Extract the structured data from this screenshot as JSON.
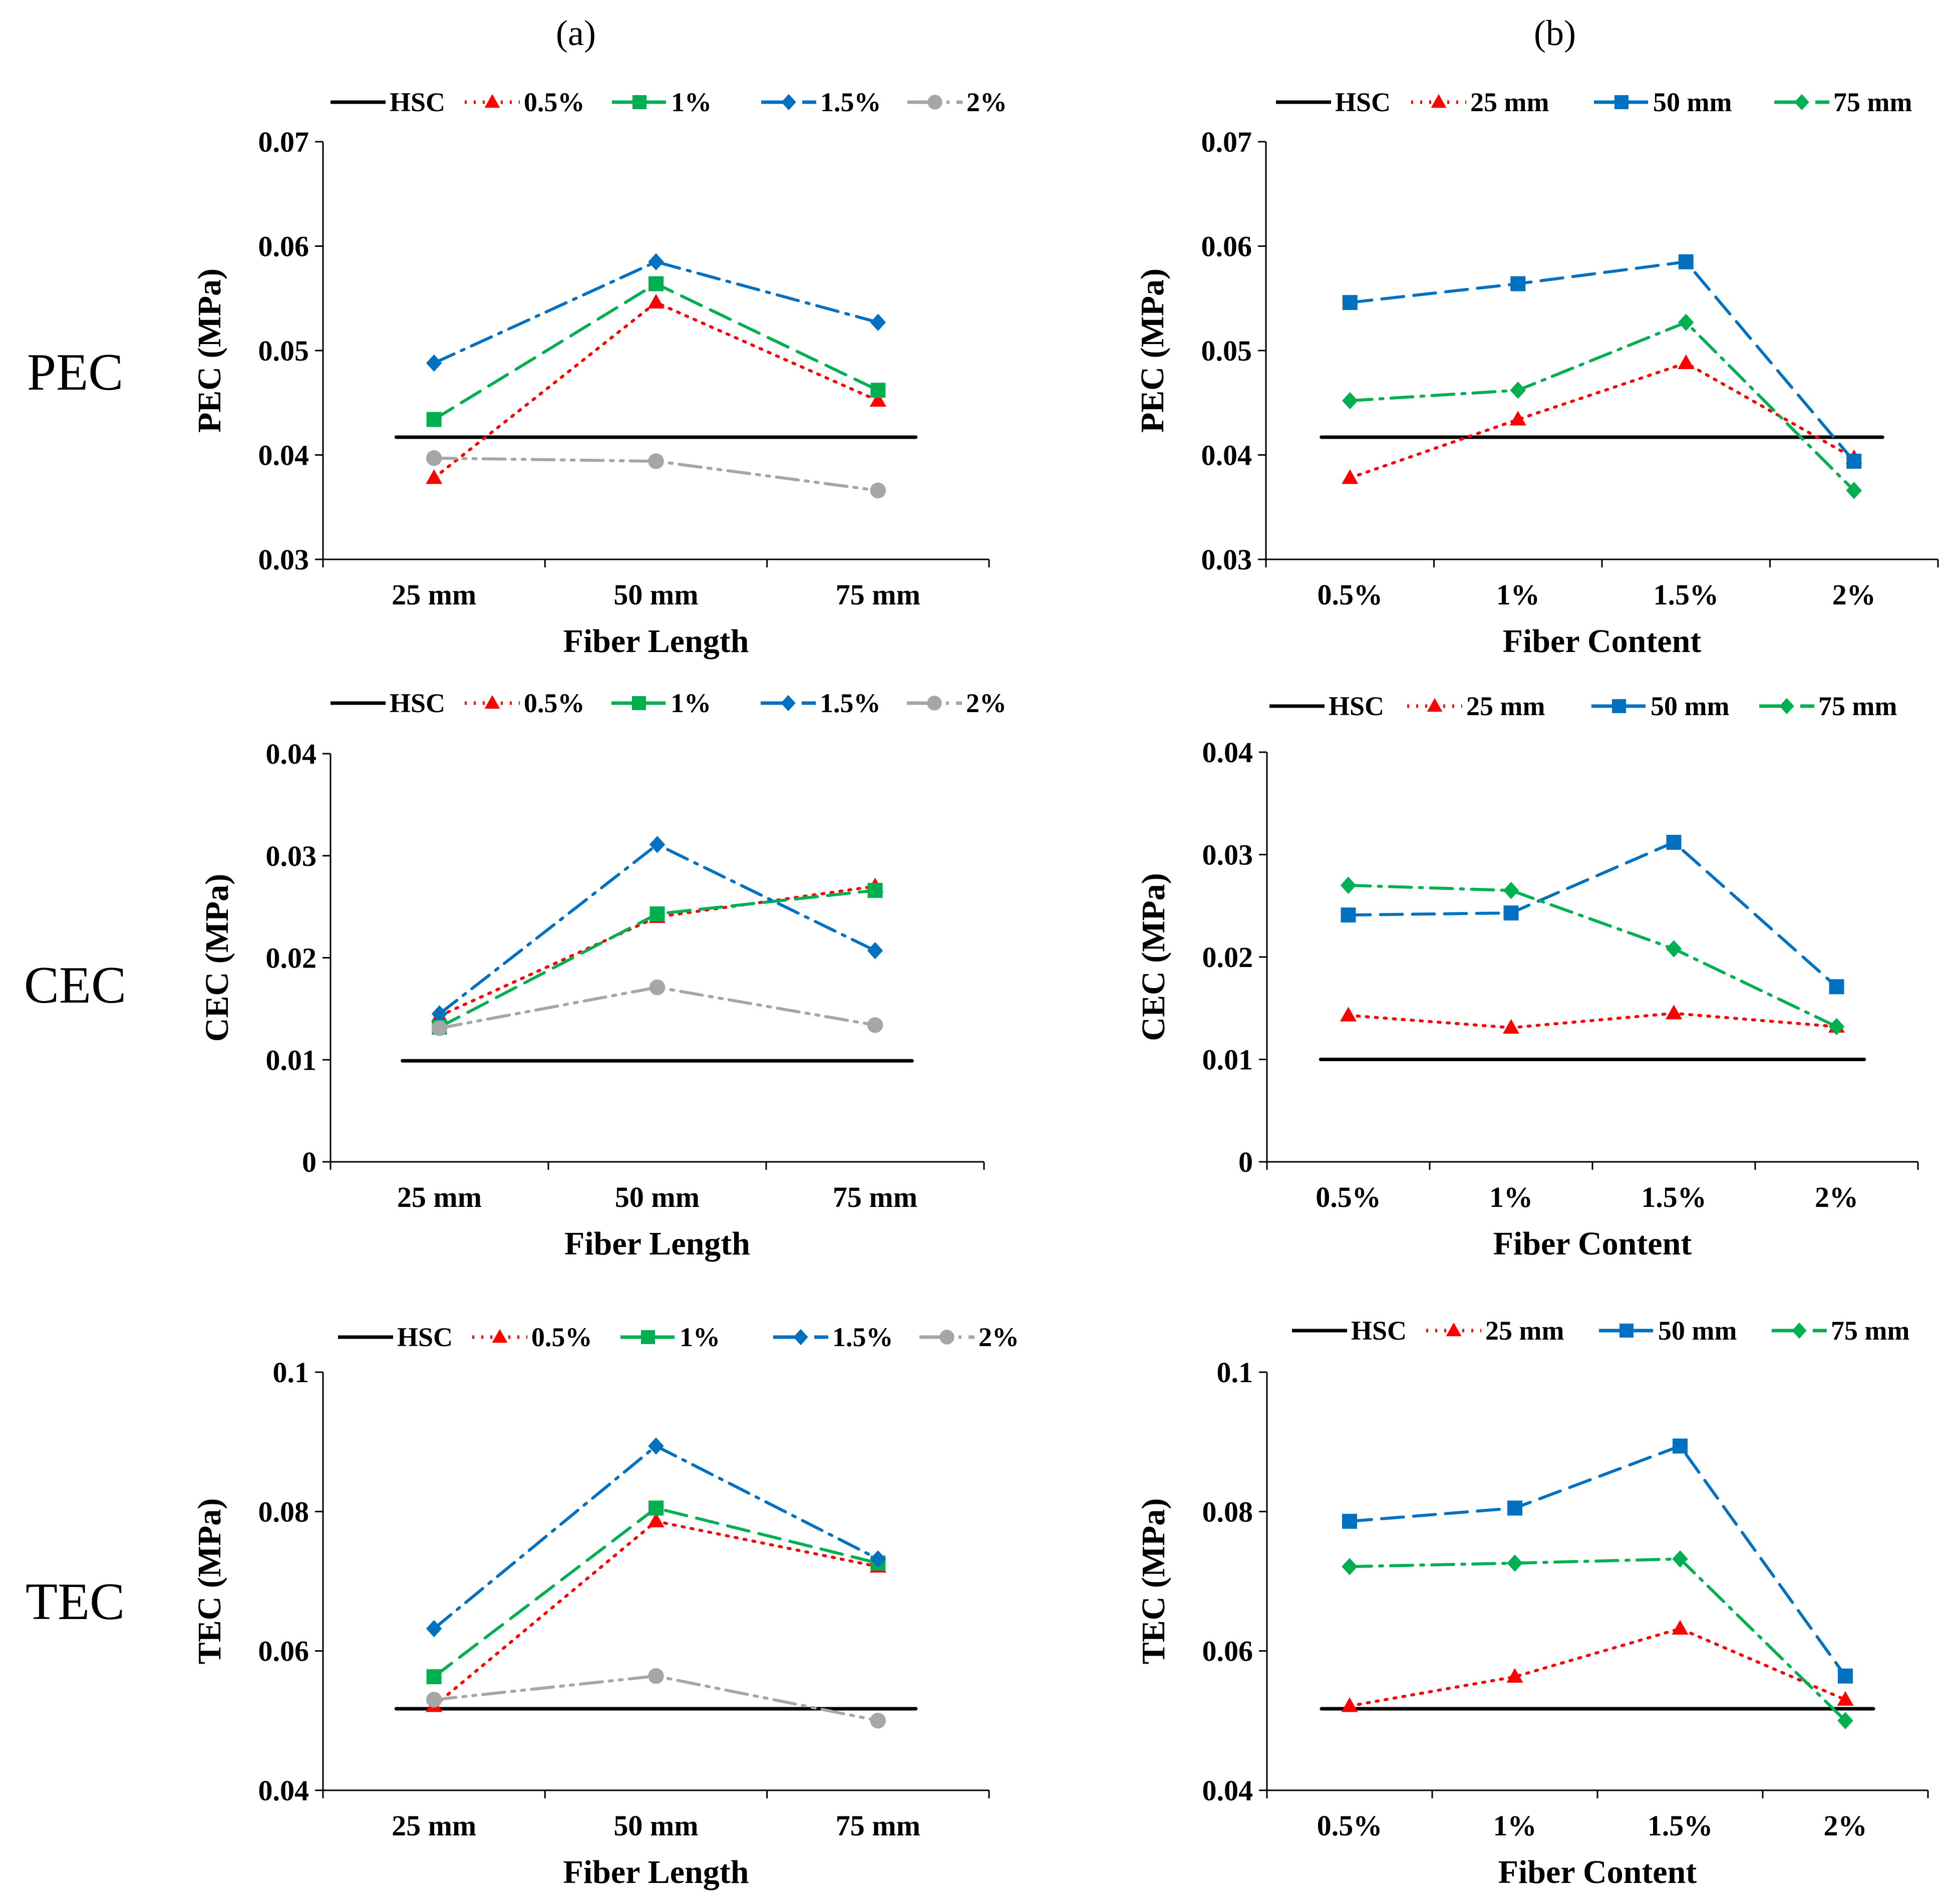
{
  "figure": {
    "column_labels": [
      "(a)",
      "(b)"
    ],
    "row_labels": [
      "PEC",
      "CEC",
      "TEC"
    ]
  },
  "colors": {
    "HSC": "#000000",
    "red": "#ff0000",
    "green": "#00b050",
    "blue": "#0070c0",
    "gray": "#a6a6a6"
  },
  "chart_data": [
    {
      "id": "pec-a",
      "type": "line",
      "xlabel": "Fiber Length",
      "ylabel": "PEC (MPa)",
      "categories": [
        "25 mm",
        "50 mm",
        "75 mm"
      ],
      "ylim": [
        0.03,
        0.07
      ],
      "yticks": [
        "0.03",
        "0.04",
        "0.05",
        "0.06",
        "0.07"
      ],
      "series": [
        {
          "name": "HSC",
          "values": [
            0.0417,
            0.0417,
            0.0417
          ],
          "color": "#000000",
          "dash": "solid",
          "marker": "none"
        },
        {
          "name": "0.5%",
          "values": [
            0.0378,
            0.0546,
            0.0452
          ],
          "color": "#ff0000",
          "dash": "dot",
          "marker": "triangle"
        },
        {
          "name": "1%",
          "values": [
            0.0434,
            0.0564,
            0.0462
          ],
          "color": "#00b050",
          "dash": "dash",
          "marker": "square"
        },
        {
          "name": "1.5%",
          "values": [
            0.0488,
            0.0585,
            0.0527
          ],
          "color": "#0070c0",
          "dash": "dashdot",
          "marker": "diamond"
        },
        {
          "name": "2%",
          "values": [
            0.0397,
            0.0394,
            0.0366
          ],
          "color": "#a6a6a6",
          "dash": "dashdotdot",
          "marker": "circle"
        }
      ]
    },
    {
      "id": "pec-b",
      "type": "line",
      "xlabel": "Fiber Content",
      "ylabel": "PEC (MPa)",
      "categories": [
        "0.5%",
        "1%",
        "1.5%",
        "2%"
      ],
      "ylim": [
        0.03,
        0.07
      ],
      "yticks": [
        "0.03",
        "0.04",
        "0.05",
        "0.06",
        "0.07"
      ],
      "series": [
        {
          "name": "HSC",
          "values": [
            0.0417,
            0.0417,
            0.0417,
            0.0417
          ],
          "color": "#000000",
          "dash": "solid",
          "marker": "none"
        },
        {
          "name": "25 mm",
          "values": [
            0.0378,
            0.0434,
            0.0488,
            0.0397
          ],
          "color": "#ff0000",
          "dash": "dot",
          "marker": "triangle"
        },
        {
          "name": "50 mm",
          "values": [
            0.0546,
            0.0564,
            0.0585,
            0.0394
          ],
          "color": "#0070c0",
          "dash": "dash",
          "marker": "square"
        },
        {
          "name": "75 mm",
          "values": [
            0.0452,
            0.0462,
            0.0527,
            0.0366
          ],
          "color": "#00b050",
          "dash": "dashdot",
          "marker": "diamond"
        }
      ]
    },
    {
      "id": "cec-a",
      "type": "line",
      "xlabel": "Fiber Length",
      "ylabel": "CEC (MPa)",
      "categories": [
        "25 mm",
        "50 mm",
        "75 mm"
      ],
      "ylim": [
        0,
        0.04
      ],
      "yticks": [
        "0",
        "0.01",
        "0.02",
        "0.03",
        "0.04"
      ],
      "series": [
        {
          "name": "HSC",
          "values": [
            0.0099,
            0.0099,
            0.0099
          ],
          "color": "#000000",
          "dash": "solid",
          "marker": "none"
        },
        {
          "name": "0.5%",
          "values": [
            0.0143,
            0.024,
            0.027
          ],
          "color": "#ff0000",
          "dash": "dot",
          "marker": "triangle"
        },
        {
          "name": "1%",
          "values": [
            0.0132,
            0.0243,
            0.0266
          ],
          "color": "#00b050",
          "dash": "dash",
          "marker": "square"
        },
        {
          "name": "1.5%",
          "values": [
            0.0145,
            0.0311,
            0.0207
          ],
          "color": "#0070c0",
          "dash": "dashdot",
          "marker": "diamond"
        },
        {
          "name": "2%",
          "values": [
            0.0131,
            0.0171,
            0.0134
          ],
          "color": "#a6a6a6",
          "dash": "dashdotdot",
          "marker": "circle"
        }
      ]
    },
    {
      "id": "cec-b",
      "type": "line",
      "xlabel": "Fiber Content",
      "ylabel": "CEC (MPa)",
      "categories": [
        "0.5%",
        "1%",
        "1.5%",
        "2%"
      ],
      "ylim": [
        0,
        0.04
      ],
      "yticks": [
        "0",
        "0.01",
        "0.02",
        "0.03",
        "0.04"
      ],
      "series": [
        {
          "name": "HSC",
          "values": [
            0.01,
            0.01,
            0.01,
            0.01
          ],
          "color": "#000000",
          "dash": "solid",
          "marker": "none"
        },
        {
          "name": "25 mm",
          "values": [
            0.0143,
            0.0131,
            0.0145,
            0.0132
          ],
          "color": "#ff0000",
          "dash": "dot",
          "marker": "triangle"
        },
        {
          "name": "50 mm",
          "values": [
            0.0241,
            0.0243,
            0.0312,
            0.0171
          ],
          "color": "#0070c0",
          "dash": "dash",
          "marker": "square"
        },
        {
          "name": "75 mm",
          "values": [
            0.027,
            0.0265,
            0.0208,
            0.0132
          ],
          "color": "#00b050",
          "dash": "dashdot",
          "marker": "diamond"
        }
      ]
    },
    {
      "id": "tec-a",
      "type": "line",
      "xlabel": "Fiber Length",
      "ylabel": "TEC (MPa)",
      "categories": [
        "25 mm",
        "50 mm",
        "75 mm"
      ],
      "ylim": [
        0.04,
        0.1
      ],
      "yticks": [
        "0.04",
        "0.06",
        "0.08",
        "0.1"
      ],
      "series": [
        {
          "name": "HSC",
          "values": [
            0.0517,
            0.0517,
            0.0517
          ],
          "color": "#000000",
          "dash": "solid",
          "marker": "none"
        },
        {
          "name": "0.5%",
          "values": [
            0.0521,
            0.0786,
            0.0721
          ],
          "color": "#ff0000",
          "dash": "dot",
          "marker": "triangle"
        },
        {
          "name": "1%",
          "values": [
            0.0563,
            0.0805,
            0.0726
          ],
          "color": "#00b050",
          "dash": "dash",
          "marker": "square"
        },
        {
          "name": "1.5%",
          "values": [
            0.0632,
            0.0894,
            0.0732
          ],
          "color": "#0070c0",
          "dash": "dashdot",
          "marker": "diamond"
        },
        {
          "name": "2%",
          "values": [
            0.053,
            0.0564,
            0.05
          ],
          "color": "#a6a6a6",
          "dash": "dashdotdot",
          "marker": "circle"
        }
      ]
    },
    {
      "id": "tec-b",
      "type": "line",
      "xlabel": "Fiber Content",
      "ylabel": "TEC (MPa)",
      "categories": [
        "0.5%",
        "1%",
        "1.5%",
        "2%"
      ],
      "ylim": [
        0.04,
        0.1
      ],
      "yticks": [
        "0.04",
        "0.06",
        "0.08",
        "0.1"
      ],
      "series": [
        {
          "name": "HSC",
          "values": [
            0.0517,
            0.0517,
            0.0517,
            0.0517
          ],
          "color": "#000000",
          "dash": "solid",
          "marker": "none"
        },
        {
          "name": "25 mm",
          "values": [
            0.0521,
            0.0563,
            0.0632,
            0.053
          ],
          "color": "#ff0000",
          "dash": "dot",
          "marker": "triangle"
        },
        {
          "name": "50 mm",
          "values": [
            0.0786,
            0.0805,
            0.0894,
            0.0564
          ],
          "color": "#0070c0",
          "dash": "dash",
          "marker": "square"
        },
        {
          "name": "75 mm",
          "values": [
            0.0721,
            0.0726,
            0.0732,
            0.05
          ],
          "color": "#00b050",
          "dash": "dashdot",
          "marker": "diamond"
        }
      ]
    }
  ]
}
